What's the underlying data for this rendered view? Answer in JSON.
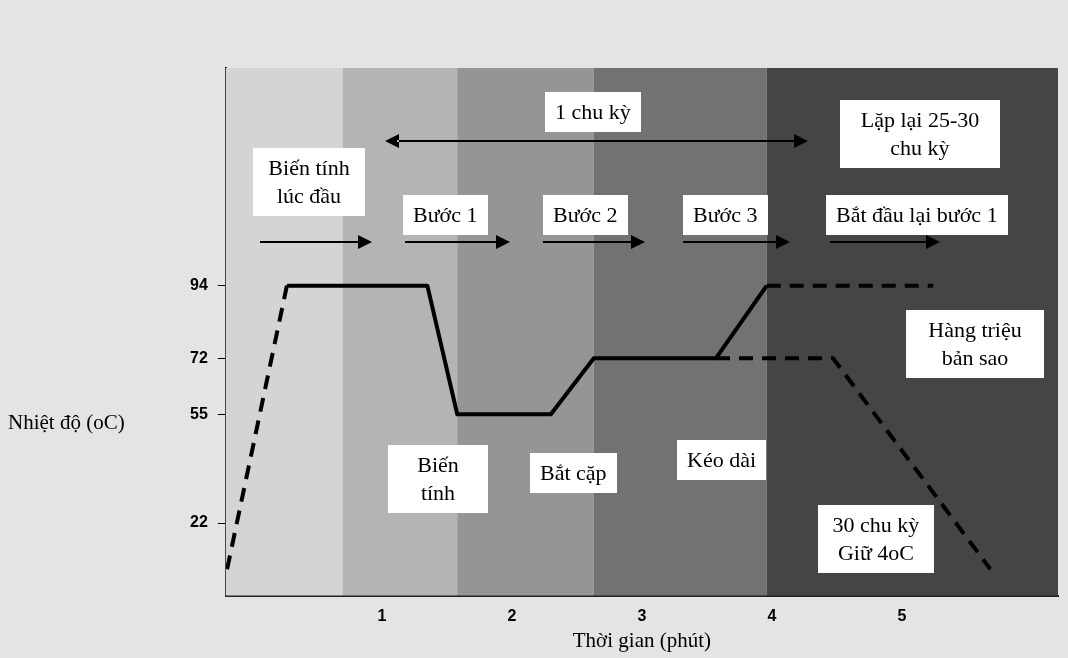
{
  "chart_data": {
    "type": "line",
    "xlabel": "Thời gian (phút)",
    "ylabel": "Nhiệt độ (oC)",
    "xlim": [
      -0.2,
      6.2
    ],
    "xticks": [
      1,
      2,
      3,
      4,
      5
    ],
    "ylim": [
      0,
      160
    ],
    "yticks": [
      22,
      55,
      72,
      94
    ],
    "grid": false,
    "legend": false,
    "marker": "none",
    "series": [
      {
        "color": "#000000",
        "line_style": "dashed",
        "x": [
          -0.19,
          0.27
        ],
        "values": [
          8,
          94
        ]
      },
      {
        "color": "#000000",
        "line_style": "solid",
        "x": [
          0.27,
          1.35,
          1.58,
          2.3,
          2.63,
          3.57,
          3.96
        ],
        "values": [
          94,
          94,
          55,
          55,
          72,
          72,
          94
        ]
      },
      {
        "color": "#000000",
        "line_style": "dashed",
        "x": [
          3.96,
          5.24
        ],
        "values": [
          94,
          94
        ]
      },
      {
        "color": "#000000",
        "line_style": "dashed",
        "x": [
          3.57,
          4.47,
          5.68
        ],
        "values": [
          72,
          72,
          8
        ]
      }
    ],
    "bands": [
      {
        "axis": "x",
        "from": -0.2,
        "to": 0.7,
        "color": "#d4d4d4"
      },
      {
        "axis": "x",
        "from": 0.7,
        "to": 1.58,
        "color": "#b4b4b4"
      },
      {
        "axis": "x",
        "from": 1.58,
        "to": 2.63,
        "color": "#959595"
      },
      {
        "axis": "x",
        "from": 2.63,
        "to": 3.96,
        "color": "#727272"
      },
      {
        "axis": "x",
        "from": 3.96,
        "to": 6.2,
        "color": "#454545"
      }
    ],
    "annotations": [
      "Biến tính lúc đầu",
      "Bước 1",
      "Bước 2",
      "Bước 3",
      "Bắt đầu lại bước 1",
      "1 chu kỳ",
      "Lặp lại 25-30 chu kỳ",
      "Biến tính",
      "Bắt cặp",
      "Kéo dài",
      "Hàng triệu bản sao",
      "30 chu kỳ Giữ 4oC"
    ]
  }
}
